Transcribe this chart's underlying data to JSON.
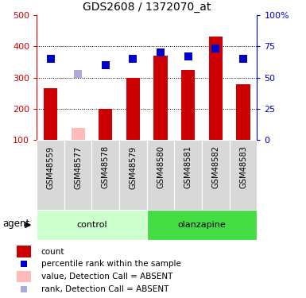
{
  "title": "GDS2608 / 1372070_at",
  "samples": [
    "GSM48559",
    "GSM48577",
    "GSM48578",
    "GSM48579",
    "GSM48580",
    "GSM48581",
    "GSM48582",
    "GSM48583"
  ],
  "bar_values": [
    265,
    140,
    200,
    300,
    370,
    325,
    430,
    278
  ],
  "bar_absent": [
    false,
    true,
    false,
    false,
    false,
    false,
    false,
    false
  ],
  "rank_values": [
    65,
    53,
    60,
    65,
    70,
    67,
    73,
    65
  ],
  "rank_absent": [
    false,
    true,
    false,
    false,
    false,
    false,
    false,
    false
  ],
  "bar_color_present": "#cc0000",
  "bar_color_absent": "#ffbbbb",
  "rank_color_present": "#0000cc",
  "rank_color_absent": "#aaaadd",
  "ylim_left": [
    100,
    500
  ],
  "ylim_right": [
    0,
    100
  ],
  "yticks_left": [
    100,
    200,
    300,
    400,
    500
  ],
  "ytick_labels_left": [
    "100",
    "200",
    "300",
    "400",
    "500"
  ],
  "yticks_right": [
    0,
    25,
    50,
    75,
    100
  ],
  "ytick_labels_right": [
    "0",
    "25",
    "50",
    "75",
    "100%"
  ],
  "grid_lines": [
    200,
    300,
    400
  ],
  "groups": [
    {
      "label": "control",
      "start": 0,
      "end": 3,
      "color": "#ccffcc"
    },
    {
      "label": "olanzapine",
      "start": 4,
      "end": 7,
      "color": "#44dd44"
    }
  ],
  "agent_label": "agent",
  "bar_width": 0.5,
  "rank_marker_size": 7,
  "sample_bg_color": "#d8d8d8",
  "legend_items": [
    {
      "color": "#cc0000",
      "shape": "rect",
      "label": "count"
    },
    {
      "color": "#0000cc",
      "shape": "square",
      "label": "percentile rank within the sample"
    },
    {
      "color": "#ffbbbb",
      "shape": "rect",
      "label": "value, Detection Call = ABSENT"
    },
    {
      "color": "#aaaadd",
      "shape": "square",
      "label": "rank, Detection Call = ABSENT"
    }
  ]
}
